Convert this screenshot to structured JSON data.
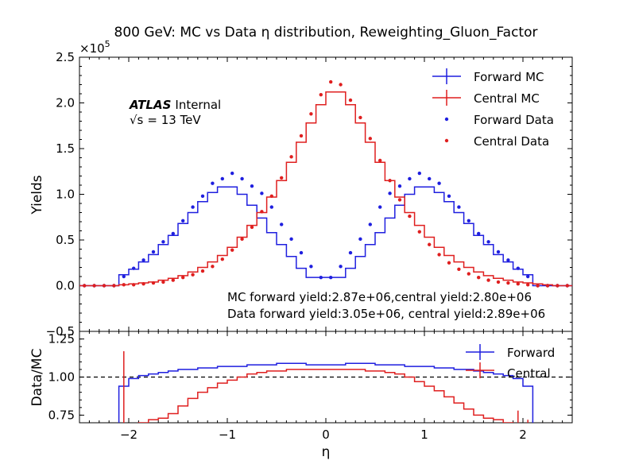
{
  "title": "800 GeV: MC vs Data η distribution, Reweighting_Gluon_Factor",
  "atlas": {
    "brand": "ATLAS",
    "status": "Internal",
    "energy_sym": "√s",
    "energy_value": "= 13 TeV"
  },
  "annotations": {
    "mc_yield": "MC forward yield:2.87e+06,central yield:2.80e+06",
    "data_yield": "Data forward yield:3.05e+06, central yield:2.89e+06"
  },
  "colors": {
    "forward": "#1f1fdf",
    "central": "#df1f1f"
  },
  "chart_data": [
    {
      "type": "line",
      "panel": "main",
      "ylabel": "Yields",
      "scale_label": "×10",
      "scale_exp": "5",
      "xlim": [
        -2.5,
        2.5
      ],
      "ylim": [
        -0.5,
        2.5
      ],
      "yticks": [
        "−0.5",
        "0.0",
        "0.5",
        "1.0",
        "1.5",
        "2.0",
        "2.5"
      ],
      "ytick_values": [
        -0.5,
        0.0,
        0.5,
        1.0,
        1.5,
        2.0,
        2.5
      ],
      "legend_position": "top-right",
      "legend": [
        "Forward MC",
        "Central MC",
        "Forward Data",
        "Central Data"
      ],
      "bin_edges": [
        -2.5,
        -2.4,
        -2.3,
        -2.2,
        -2.1,
        -2.0,
        -1.9,
        -1.8,
        -1.7,
        -1.6,
        -1.5,
        -1.4,
        -1.3,
        -1.2,
        -1.1,
        -1.0,
        -0.9,
        -0.8,
        -0.7,
        -0.6,
        -0.5,
        -0.4,
        -0.3,
        -0.2,
        -0.1,
        0.0,
        0.1,
        0.2,
        0.3,
        0.4,
        0.5,
        0.6,
        0.7,
        0.8,
        0.9,
        1.0,
        1.1,
        1.2,
        1.3,
        1.4,
        1.5,
        1.6,
        1.7,
        1.8,
        1.9,
        2.0,
        2.1,
        2.2,
        2.3,
        2.4,
        2.5
      ],
      "series": [
        {
          "name": "Forward MC",
          "kind": "step",
          "values": [
            0.0,
            0.0,
            0.0,
            0.0,
            0.12,
            0.18,
            0.26,
            0.34,
            0.45,
            0.55,
            0.68,
            0.8,
            0.92,
            1.02,
            1.08,
            1.08,
            1.0,
            0.88,
            0.74,
            0.58,
            0.45,
            0.32,
            0.19,
            0.09,
            0.09,
            0.09,
            0.09,
            0.19,
            0.32,
            0.45,
            0.58,
            0.74,
            0.88,
            1.0,
            1.08,
            1.08,
            1.02,
            0.92,
            0.8,
            0.68,
            0.55,
            0.45,
            0.34,
            0.26,
            0.18,
            0.12,
            0.0,
            0.0,
            0.0,
            0.0
          ]
        },
        {
          "name": "Central MC",
          "kind": "step",
          "values": [
            0.0,
            0.0,
            0.0,
            0.0,
            0.01,
            0.02,
            0.03,
            0.04,
            0.06,
            0.08,
            0.11,
            0.15,
            0.2,
            0.26,
            0.33,
            0.42,
            0.53,
            0.66,
            0.8,
            0.97,
            1.15,
            1.35,
            1.57,
            1.78,
            1.98,
            2.12,
            2.12,
            1.98,
            1.78,
            1.57,
            1.35,
            1.15,
            0.97,
            0.8,
            0.66,
            0.53,
            0.42,
            0.33,
            0.26,
            0.2,
            0.15,
            0.11,
            0.08,
            0.06,
            0.04,
            0.03,
            0.02,
            0.01,
            0.0,
            0.0
          ]
        },
        {
          "name": "Forward Data",
          "kind": "points",
          "x": [
            -2.45,
            -2.35,
            -2.25,
            -2.15,
            -2.05,
            -1.95,
            -1.85,
            -1.75,
            -1.65,
            -1.55,
            -1.45,
            -1.35,
            -1.25,
            -1.15,
            -1.05,
            -0.95,
            -0.85,
            -0.75,
            -0.65,
            -0.55,
            -0.45,
            -0.35,
            -0.25,
            -0.15,
            -0.05,
            0.05,
            0.15,
            0.25,
            0.35,
            0.45,
            0.55,
            0.65,
            0.75,
            0.85,
            0.95,
            1.05,
            1.15,
            1.25,
            1.35,
            1.45,
            1.55,
            1.65,
            1.75,
            1.85,
            1.95,
            2.05,
            2.15,
            2.25,
            2.35,
            2.45
          ],
          "y": [
            0.0,
            0.0,
            0.0,
            0.0,
            0.1,
            0.19,
            0.28,
            0.37,
            0.48,
            0.57,
            0.71,
            0.86,
            0.98,
            1.12,
            1.17,
            1.23,
            1.17,
            1.09,
            1.01,
            0.86,
            0.67,
            0.51,
            0.36,
            0.21,
            0.09,
            0.09,
            0.21,
            0.36,
            0.51,
            0.67,
            0.86,
            1.01,
            1.09,
            1.17,
            1.23,
            1.17,
            1.12,
            0.98,
            0.86,
            0.71,
            0.57,
            0.48,
            0.37,
            0.28,
            0.19,
            0.1,
            0.0,
            0.0,
            0.0,
            0.0
          ]
        },
        {
          "name": "Central Data",
          "kind": "points",
          "x": [
            -2.45,
            -2.35,
            -2.25,
            -2.15,
            -2.05,
            -1.95,
            -1.85,
            -1.75,
            -1.65,
            -1.55,
            -1.45,
            -1.35,
            -1.25,
            -1.15,
            -1.05,
            -0.95,
            -0.85,
            -0.75,
            -0.65,
            -0.55,
            -0.45,
            -0.35,
            -0.25,
            -0.15,
            -0.05,
            0.05,
            0.15,
            0.25,
            0.35,
            0.45,
            0.55,
            0.65,
            0.75,
            0.85,
            0.95,
            1.05,
            1.15,
            1.25,
            1.35,
            1.45,
            1.55,
            1.65,
            1.75,
            1.85,
            1.95,
            2.05,
            2.15,
            2.25,
            2.35,
            2.45
          ],
          "y": [
            0.0,
            0.0,
            0.0,
            0.0,
            0.01,
            0.01,
            0.02,
            0.03,
            0.04,
            0.06,
            0.09,
            0.12,
            0.16,
            0.21,
            0.29,
            0.39,
            0.51,
            0.64,
            0.81,
            0.98,
            1.18,
            1.41,
            1.64,
            1.88,
            2.09,
            2.23,
            2.2,
            2.03,
            1.84,
            1.61,
            1.37,
            1.15,
            0.94,
            0.76,
            0.59,
            0.45,
            0.34,
            0.25,
            0.18,
            0.13,
            0.09,
            0.06,
            0.04,
            0.03,
            0.02,
            0.01,
            0.0,
            0.0,
            0.0,
            0.0
          ]
        }
      ]
    },
    {
      "type": "line",
      "panel": "ratio",
      "xlabel": "η",
      "ylabel": "Data/MC",
      "xlim": [
        -2.5,
        2.5
      ],
      "ylim": [
        0.7,
        1.3
      ],
      "xticks": [
        "−2",
        "−1",
        "0",
        "1",
        "2"
      ],
      "xtick_values": [
        -2,
        -1,
        0,
        1,
        2
      ],
      "yticks": [
        "0.75",
        "1.00",
        "1.25"
      ],
      "ytick_values": [
        0.75,
        1.0,
        1.25
      ],
      "reference_line": 1.0,
      "legend_position": "top-right",
      "legend": [
        "Forward",
        "Central"
      ],
      "bin_edges": [
        -2.1,
        -2.0,
        -1.9,
        -1.8,
        -1.7,
        -1.6,
        -1.5,
        -1.4,
        -1.3,
        -1.2,
        -1.1,
        -1.0,
        -0.9,
        -0.8,
        -0.7,
        -0.6,
        -0.5,
        -0.4,
        -0.3,
        -0.2,
        -0.1,
        0.0,
        0.1,
        0.2,
        0.3,
        0.4,
        0.5,
        0.6,
        0.7,
        0.8,
        0.9,
        1.0,
        1.1,
        1.2,
        1.3,
        1.4,
        1.5,
        1.6,
        1.7,
        1.8,
        1.9,
        2.0,
        2.1
      ],
      "series": [
        {
          "name": "Forward",
          "kind": "step",
          "values": [
            0.94,
            0.99,
            1.01,
            1.02,
            1.03,
            1.04,
            1.05,
            1.05,
            1.06,
            1.06,
            1.07,
            1.07,
            1.07,
            1.08,
            1.08,
            1.08,
            1.09,
            1.09,
            1.09,
            1.08,
            1.08,
            1.08,
            1.08,
            1.09,
            1.09,
            1.09,
            1.08,
            1.08,
            1.08,
            1.07,
            1.07,
            1.07,
            1.06,
            1.06,
            1.05,
            1.05,
            1.04,
            1.03,
            1.02,
            1.01,
            0.99,
            0.94
          ]
        },
        {
          "name": "Central",
          "kind": "step",
          "values": [
            0.55,
            0.65,
            0.7,
            0.72,
            0.73,
            0.76,
            0.81,
            0.86,
            0.9,
            0.93,
            0.96,
            0.98,
            1.0,
            1.02,
            1.03,
            1.04,
            1.04,
            1.05,
            1.05,
            1.05,
            1.05,
            1.05,
            1.05,
            1.05,
            1.05,
            1.04,
            1.04,
            1.03,
            1.02,
            1.0,
            0.97,
            0.94,
            0.91,
            0.87,
            0.83,
            0.79,
            0.75,
            0.73,
            0.72,
            0.7,
            0.66,
            0.57
          ]
        }
      ],
      "error_bars": [
        {
          "series": "Central",
          "x": -2.05,
          "low": 0.55,
          "high": 1.17
        },
        {
          "series": "Central",
          "x": 1.95,
          "low": 0.6,
          "high": 0.78
        },
        {
          "series": "Central",
          "x": 2.05,
          "low": 0.55,
          "high": 0.72
        }
      ]
    }
  ]
}
